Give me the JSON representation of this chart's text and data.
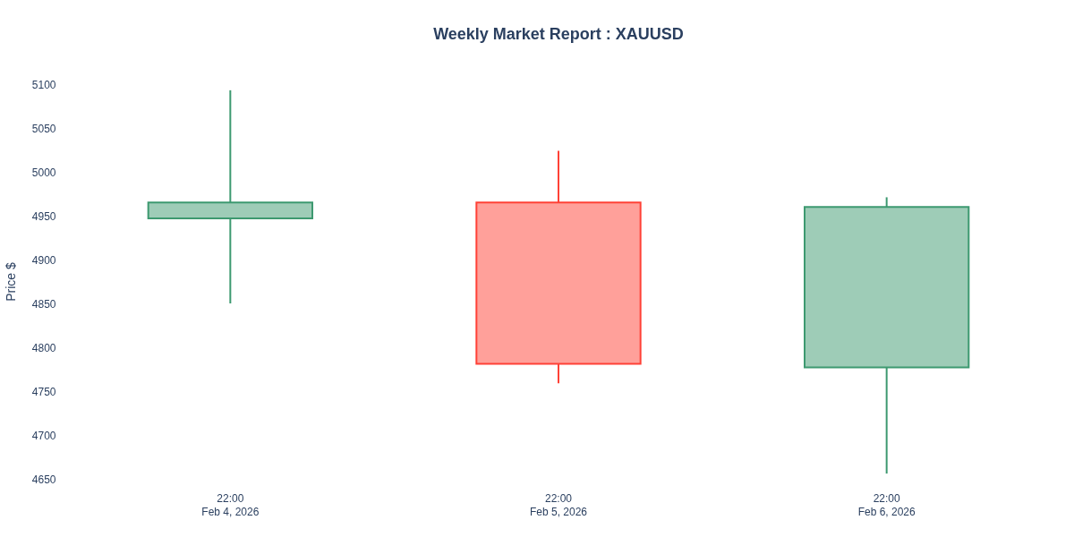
{
  "chart_data": {
    "type": "candlestick",
    "title": "Weekly Market Report : XAUUSD",
    "ylabel": "Price $",
    "categories": [
      "22:00\nFeb 4, 2026",
      "22:00\nFeb 5, 2026",
      "22:00\nFeb 6, 2026"
    ],
    "ohlc": [
      [
        4947,
        5093,
        4850,
        4965
      ],
      [
        4965,
        5024,
        4759,
        4781
      ],
      [
        4777,
        4971,
        4656,
        4960
      ]
    ],
    "colors": [
      "#3d9970",
      "#ff4136",
      "#3d9970"
    ],
    "ylim": [
      4650,
      5100
    ],
    "yticks": [
      4650,
      4700,
      4750,
      4800,
      4850,
      4900,
      4950,
      5000,
      5050,
      5100
    ],
    "grid": false
  }
}
